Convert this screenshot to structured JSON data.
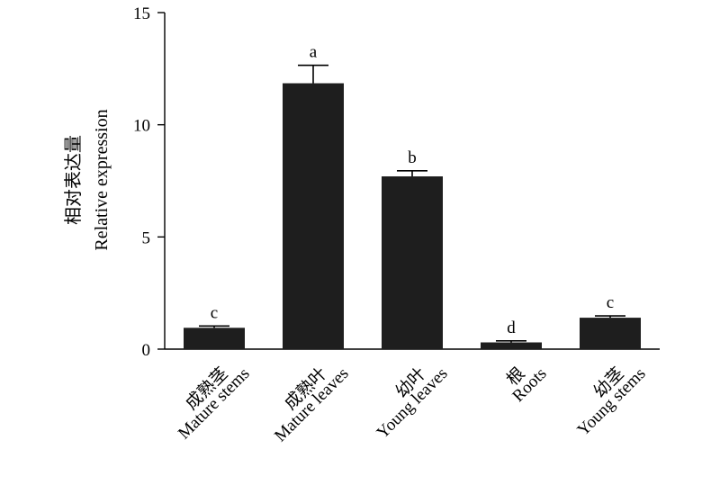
{
  "chart_data": {
    "type": "bar",
    "categories": [
      {
        "zh": "成熟茎",
        "en": "Mature stems"
      },
      {
        "zh": "成熟叶",
        "en": "Mature leaves"
      },
      {
        "zh": "幼叶",
        "en": "Young leaves"
      },
      {
        "zh": "根",
        "en": "Roots"
      },
      {
        "zh": "幼茎",
        "en": "Young stems"
      }
    ],
    "values": [
      0.95,
      11.85,
      7.7,
      0.3,
      1.4
    ],
    "errors": [
      0.08,
      0.8,
      0.25,
      0.07,
      0.08
    ],
    "significance": [
      "c",
      "a",
      "b",
      "d",
      "c"
    ],
    "ylabel_zh": "相对表达量",
    "ylabel_en": "Relative expression",
    "ylim": [
      0,
      15
    ],
    "yticks": [
      0,
      5,
      10,
      15
    ],
    "bar_color": "#1e1e1e",
    "grid": false
  }
}
